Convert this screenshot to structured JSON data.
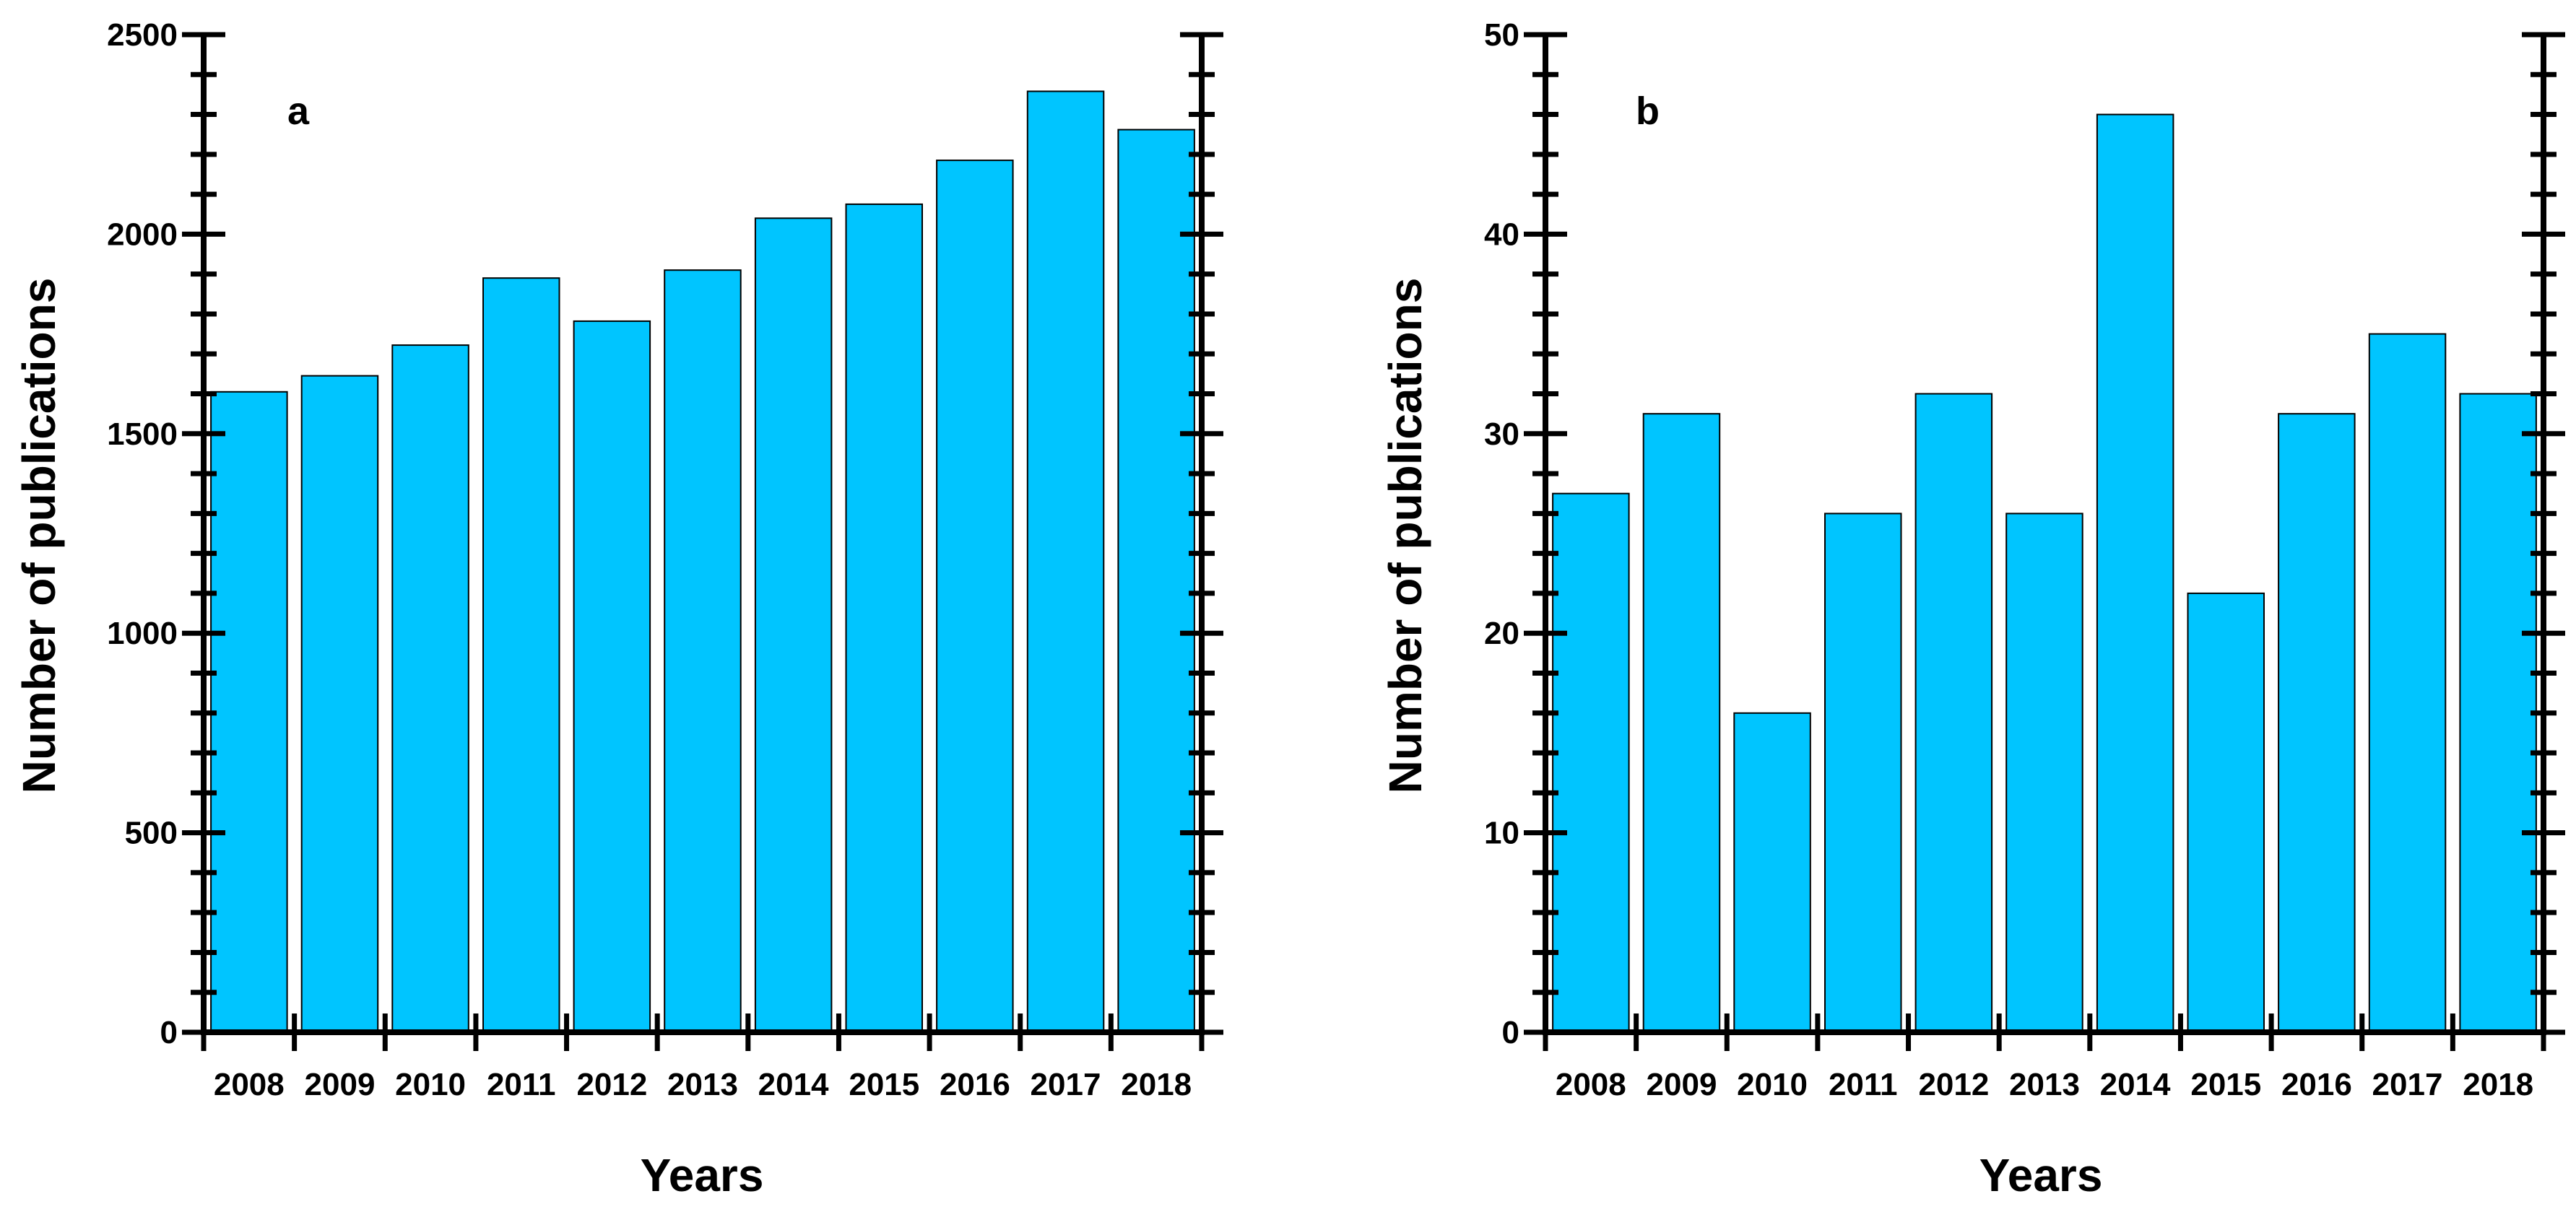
{
  "chart_data": [
    {
      "type": "bar",
      "panel_label": "a",
      "categories": [
        "2008",
        "2009",
        "2010",
        "2011",
        "2012",
        "2013",
        "2014",
        "2015",
        "2016",
        "2017",
        "2018"
      ],
      "values": [
        1605,
        1645,
        1722,
        1890,
        1782,
        1910,
        2040,
        2075,
        2185,
        2358,
        2262
      ],
      "xlabel": "Years",
      "ylabel": "Number of publications",
      "ylim": [
        0,
        2500
      ],
      "yticks": [
        "0",
        "500",
        "1000",
        "1500",
        "2000",
        "2500"
      ],
      "grid": false,
      "bar_color": "#00C5FF"
    },
    {
      "type": "bar",
      "panel_label": "b",
      "categories": [
        "2008",
        "2009",
        "2010",
        "2011",
        "2012",
        "2013",
        "2014",
        "2015",
        "2016",
        "2017",
        "2018"
      ],
      "values": [
        27,
        31,
        16,
        26,
        32,
        26,
        46,
        22,
        31,
        35,
        32
      ],
      "xlabel": "Years",
      "ylabel": "Number of publications",
      "ylim": [
        0,
        50
      ],
      "yticks": [
        "0",
        "10",
        "20",
        "30",
        "40",
        "50"
      ],
      "grid": false,
      "bar_color": "#00C5FF"
    }
  ]
}
